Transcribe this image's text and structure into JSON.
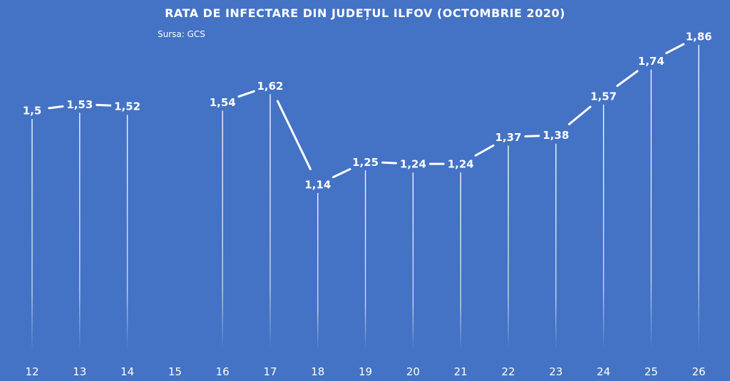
{
  "chart_data": {
    "type": "line",
    "title": "RATA DE INFECTARE DIN JUDEȚUL ILFOV (OCTOMBRIE 2020)",
    "subtitle": "Sursa: GCS",
    "xlabel": "",
    "ylabel": "",
    "grid": false,
    "legend": "none",
    "categories": [
      "12",
      "13",
      "14",
      "15",
      "16",
      "17",
      "18",
      "19",
      "20",
      "21",
      "22",
      "23",
      "24",
      "25",
      "26"
    ],
    "series": [
      {
        "values": [
          1.5,
          1.53,
          1.52,
          null,
          1.54,
          1.62,
          1.14,
          1.25,
          1.24,
          1.24,
          1.37,
          1.38,
          1.57,
          1.74,
          1.86
        ],
        "labels": [
          "1,5",
          "1,53",
          "1,52",
          "",
          "1,54",
          "1,62",
          "1,14",
          "1,25",
          "1,24",
          "1,24",
          "1,37",
          "1,38",
          "1,57",
          "1,74",
          "1,86"
        ]
      }
    ],
    "colors": {
      "background": "#4472C4",
      "line": "#FFFFFF"
    }
  }
}
